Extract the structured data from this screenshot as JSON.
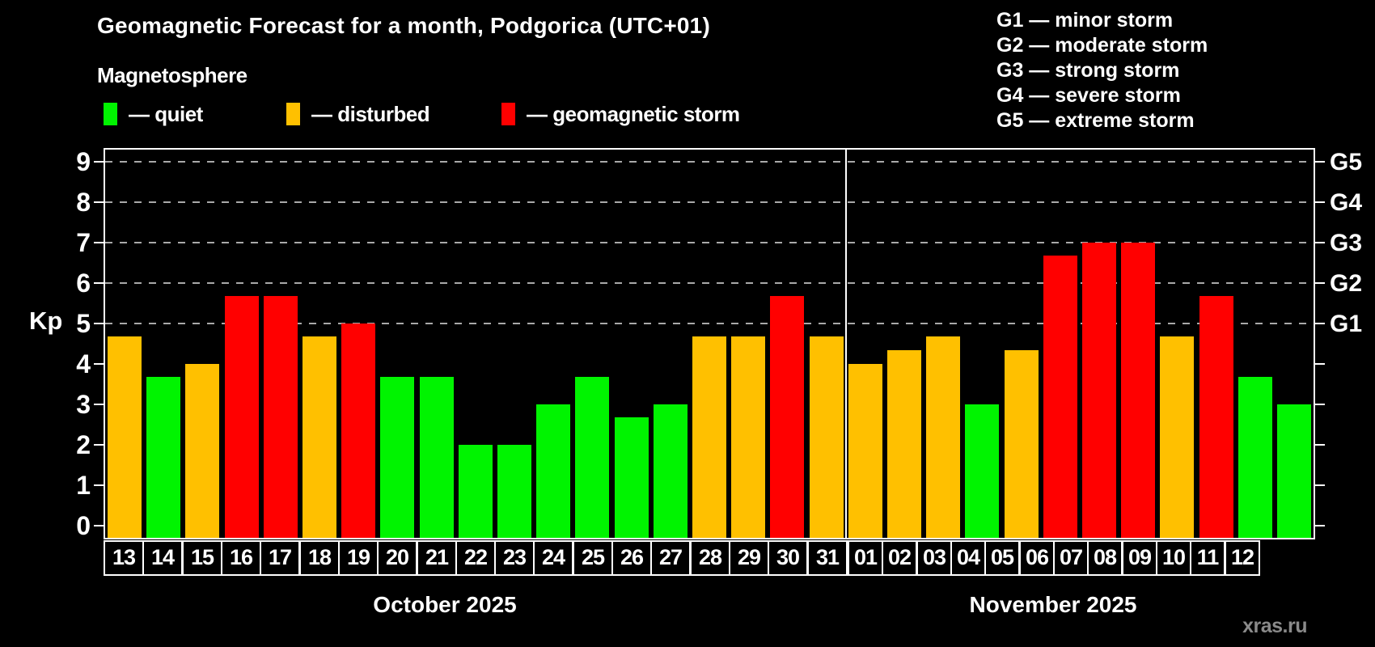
{
  "header": {
    "title": "Geomagnetic Forecast for a month, Podgorica (UTC+01)",
    "subtitle": "Magnetosphere"
  },
  "legend": {
    "items": [
      {
        "name": "quiet",
        "label": "— quiet",
        "color": "#00f400"
      },
      {
        "name": "disturbed",
        "label": "— disturbed",
        "color": "#ffc000"
      },
      {
        "name": "storm",
        "label": "— geomagnetic storm",
        "color": "#ff0000"
      }
    ]
  },
  "g_legend": {
    "lines": [
      "G1 — minor storm",
      "G2 — moderate storm",
      "G3 — strong storm",
      "G4 — severe storm",
      "G5 — extreme storm"
    ]
  },
  "watermark": "xras.ru",
  "chart_data": {
    "type": "bar",
    "title": "Geomagnetic Forecast for a month, Podgorica (UTC+01)",
    "ylabel": "Kp",
    "ylim": [
      0,
      9
    ],
    "yticks": [
      0,
      1,
      2,
      3,
      4,
      5,
      6,
      7,
      8,
      9
    ],
    "gridlines": [
      5,
      6,
      7,
      8,
      9
    ],
    "grid": "dashed-horizontal",
    "right_axis_labels": [
      {
        "label": "G1",
        "kp": 5
      },
      {
        "label": "G2",
        "kp": 6
      },
      {
        "label": "G3",
        "kp": 7
      },
      {
        "label": "G4",
        "kp": 8
      },
      {
        "label": "G5",
        "kp": 9
      }
    ],
    "colors": {
      "quiet": "#00f400",
      "disturbed": "#ffc000",
      "storm": "#ff0000"
    },
    "color_rule": "quiet: Kp < 4, disturbed: 4 <= Kp < 5, storm: Kp >= 5",
    "months": [
      {
        "label": "October 2025",
        "days": [
          "13",
          "14",
          "15",
          "16",
          "17",
          "18",
          "19",
          "20",
          "21",
          "22",
          "23",
          "24",
          "25",
          "26",
          "27",
          "28",
          "29",
          "30",
          "31"
        ],
        "values": [
          4.67,
          3.67,
          4.0,
          5.67,
          5.67,
          4.67,
          5.0,
          3.67,
          3.67,
          2.0,
          2.0,
          3.0,
          3.67,
          2.67,
          3.0,
          4.67,
          4.67,
          5.67,
          4.67
        ],
        "statuses": [
          "disturbed",
          "quiet",
          "disturbed",
          "storm",
          "storm",
          "disturbed",
          "storm",
          "quiet",
          "quiet",
          "quiet",
          "quiet",
          "quiet",
          "quiet",
          "quiet",
          "quiet",
          "disturbed",
          "disturbed",
          "storm",
          "disturbed"
        ]
      },
      {
        "label": "November 2025",
        "days": [
          "01",
          "02",
          "03",
          "04",
          "05",
          "06",
          "07",
          "08",
          "09",
          "10",
          "11",
          "12"
        ],
        "values": [
          4.0,
          4.33,
          4.67,
          3.0,
          4.33,
          6.67,
          7.0,
          7.0,
          4.67,
          5.67,
          3.67,
          3.0
        ],
        "statuses": [
          "disturbed",
          "disturbed",
          "disturbed",
          "quiet",
          "disturbed",
          "storm",
          "storm",
          "storm",
          "disturbed",
          "storm",
          "quiet",
          "quiet"
        ]
      }
    ]
  }
}
